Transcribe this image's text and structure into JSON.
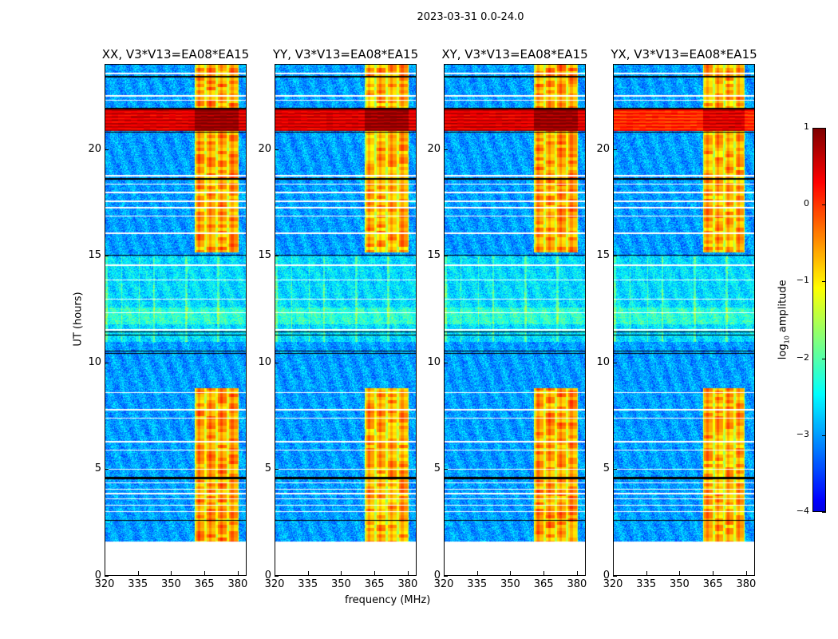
{
  "chart_data": {
    "type": "heatmap",
    "title": "2023-03-31 0.0-24.0",
    "xlabel": "frequency (MHz)",
    "ylabel": "UT (hours)",
    "xlim": [
      320,
      384
    ],
    "ylim": [
      0,
      24
    ],
    "xticks": [
      "320",
      "335",
      "350",
      "365",
      "380"
    ],
    "xtick_values": [
      320,
      335,
      350,
      365,
      380
    ],
    "yticks": [
      "0",
      "5",
      "10",
      "15",
      "20"
    ],
    "ytick_values": [
      0,
      5,
      10,
      15,
      20
    ],
    "data_start_hours": 1.6,
    "panels": [
      {
        "title": "XX, V3*V13=EA08*EA15",
        "rfi_band_mhz": [
          360.5,
          380.5
        ]
      },
      {
        "title": "YY, V3*V13=EA08*EA15",
        "rfi_band_mhz": [
          360.5,
          380.5
        ]
      },
      {
        "title": "XY, V3*V13=EA08*EA15",
        "rfi_band_mhz": [
          360.5,
          380.5
        ]
      },
      {
        "title": "YX, V3*V13=EA08*EA15",
        "rfi_band_mhz": [
          360.5,
          379.5
        ]
      }
    ],
    "features": {
      "background_log_amplitude": -3.0,
      "rfi_band_log_amplitude": -0.6,
      "rfi_time_ranges_hours": [
        [
          1.6,
          8.8
        ],
        [
          15.2,
          24.0
        ]
      ],
      "strong_interference_hours": [
        20.9,
        21.9
      ],
      "strong_interference_log_amplitude": 0.5,
      "enhanced_noise_hours": [
        [
          11.0,
          12.6
        ],
        [
          12.6,
          15.0
        ]
      ],
      "flagged_rows_hours": [
        3.0,
        3.3,
        3.6,
        3.85,
        4.05,
        4.35,
        5.0,
        5.9,
        6.3,
        7.4,
        7.8,
        8.6,
        11.55,
        12.35,
        13.0,
        13.9,
        14.6,
        16.1,
        16.9,
        17.3,
        17.6,
        18.0,
        18.4,
        18.8,
        22.35,
        22.55,
        23.6
      ],
      "dark_rows_hours": [
        2.6,
        4.55,
        4.6,
        10.45,
        10.55,
        11.3,
        11.45,
        15.05,
        18.65,
        20.85,
        21.95,
        23.45
      ]
    },
    "colorbar": {
      "label": "log10 amplitude",
      "label_base": "log",
      "label_sub": "10",
      "label_rest": " amplitude",
      "range": [
        -4,
        1
      ],
      "ticks": [
        "1",
        "0",
        "−1",
        "−2",
        "−3",
        "−4"
      ],
      "tick_values": [
        1,
        0,
        -1,
        -2,
        -3,
        -4
      ],
      "colormap": "jet"
    }
  }
}
